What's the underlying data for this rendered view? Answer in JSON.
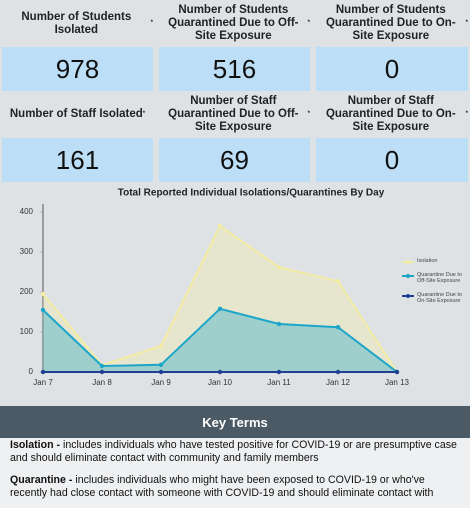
{
  "cards": [
    {
      "label": "Number of Students Isolated",
      "marker": "*",
      "value": 978
    },
    {
      "label": "Number of Students Quarantined Due to Off-Site Exposure",
      "marker": "*",
      "value": 516
    },
    {
      "label": "Number of Students Quarantined Due to On-Site Exposure",
      "marker": "*",
      "value": 0
    },
    {
      "label": "Number of Staff Isolated",
      "marker": "*",
      "value": 161
    },
    {
      "label": "Number of Staff Quarantined Due to Off-Site Exposure",
      "marker": "*",
      "value": 69
    },
    {
      "label": "Number of Staff Quarantined Due to On-Site Exposure",
      "marker": "*",
      "value": 0
    }
  ],
  "chart_data": {
    "type": "area",
    "title": "Total Reported Individual Isolations/Quarantines By Day",
    "categories": [
      "Jan 7",
      "Jan 8",
      "Jan 9",
      "Jan 10",
      "Jan 11",
      "Jan 12",
      "Jan 13"
    ],
    "series": [
      {
        "name": "Isolation",
        "color": "#f3eca4",
        "values": [
          195,
          17,
          65,
          365,
          262,
          227,
          0
        ]
      },
      {
        "name": "Quarantine Due to Off-Site Exposure",
        "color": "#1ba6c9",
        "values": [
          155,
          15,
          18,
          158,
          120,
          112,
          0
        ]
      },
      {
        "name": "Quarantine Due to On-Site Exposure",
        "color": "#1f3f93",
        "values": [
          0,
          0,
          0,
          0,
          0,
          0,
          0
        ]
      }
    ],
    "ylim": [
      0,
      400
    ],
    "yticks": [
      0,
      100,
      200,
      300,
      400
    ],
    "grid": false,
    "legend": "right"
  },
  "key_terms": {
    "title": "Key Terms",
    "items": [
      {
        "term": "Isolation -",
        "definition": "includes individuals who have tested positive for COVID-19 or are presumptive case and should eliminate contact with community and family members"
      },
      {
        "term": "Quarantine -",
        "definition": "includes individuals who might have been exposed to COVID-19 or who've recently had close contact with someone with COVID-19 and should eliminate contact with"
      }
    ]
  }
}
